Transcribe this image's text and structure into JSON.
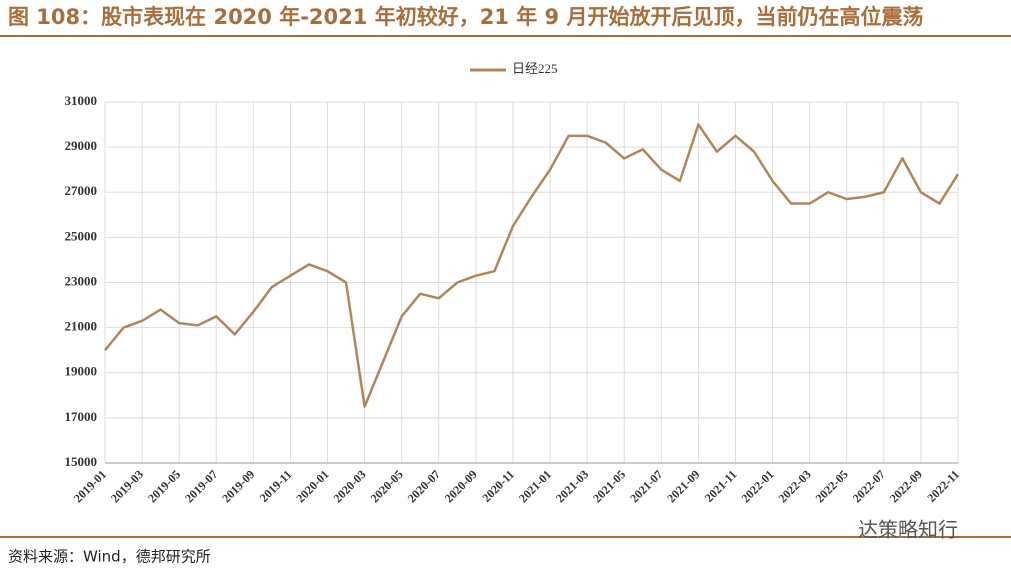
{
  "header": {
    "title": "图 108：股市表现在 2020 年-2021 年初较好，21 年 9 月开始放开后见顶，当前仍在高位震荡"
  },
  "chart_data": {
    "type": "line",
    "x": [
      "2019-01",
      "2019-02",
      "2019-03",
      "2019-04",
      "2019-05",
      "2019-06",
      "2019-07",
      "2019-08",
      "2019-09",
      "2019-10",
      "2019-11",
      "2019-12",
      "2020-01",
      "2020-02",
      "2020-03",
      "2020-04",
      "2020-05",
      "2020-06",
      "2020-07",
      "2020-08",
      "2020-09",
      "2020-10",
      "2020-11",
      "2020-12",
      "2021-01",
      "2021-02",
      "2021-03",
      "2021-04",
      "2021-05",
      "2021-06",
      "2021-07",
      "2021-08",
      "2021-09",
      "2021-10",
      "2021-11",
      "2021-12",
      "2022-01",
      "2022-02",
      "2022-03",
      "2022-04",
      "2022-05",
      "2022-06",
      "2022-07",
      "2022-08",
      "2022-09",
      "2022-10",
      "2022-11"
    ],
    "series": [
      {
        "name": "日经225",
        "color": "#b0875a",
        "values": [
          20000,
          21000,
          21300,
          21800,
          21200,
          21100,
          21500,
          20700,
          21700,
          22800,
          23300,
          23800,
          23500,
          23000,
          17500,
          19500,
          21500,
          22500,
          22300,
          23000,
          23300,
          23500,
          25500,
          26800,
          28000,
          29500,
          29500,
          29200,
          28500,
          28900,
          28000,
          27500,
          30000,
          28800,
          29500,
          28800,
          27500,
          26500,
          26500,
          27000,
          26700,
          26800,
          27000,
          28500,
          27000,
          26500,
          27800
        ]
      }
    ],
    "ylim": [
      15000,
      31000
    ],
    "yticks": [
      15000,
      17000,
      19000,
      21000,
      23000,
      25000,
      27000,
      29000,
      31000
    ],
    "grid": true,
    "legend": "top"
  },
  "footer": {
    "source": "资料来源：Wind，德邦研究所",
    "watermark": "达策略知行"
  }
}
